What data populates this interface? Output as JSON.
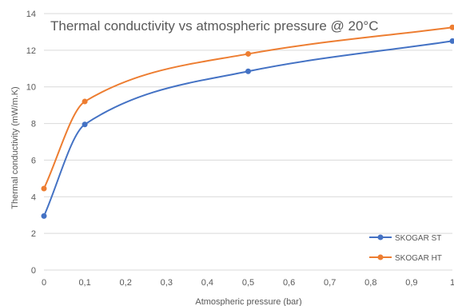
{
  "chart_data": {
    "type": "line",
    "title": "Thermal conductivity vs atmospheric pressure @ 20°C",
    "xlabel": "Atmospheric pressure (bar)",
    "ylabel": "Thermal conductivity (mW/m.K)",
    "xlim": [
      0,
      1
    ],
    "ylim": [
      0,
      14
    ],
    "x_ticks": [
      "0",
      "0,1",
      "0,2",
      "0,3",
      "0,4",
      "0,5",
      "0,6",
      "0,7",
      "0,8",
      "0,9",
      "1"
    ],
    "y_ticks": [
      "0",
      "2",
      "4",
      "6",
      "8",
      "10",
      "12",
      "14"
    ],
    "grid": "horizontal",
    "legend_position": "bottom-right",
    "series": [
      {
        "name": "SKOGAR ST",
        "color": "#4472c4",
        "x": [
          0,
          0.1,
          0.5,
          1
        ],
        "y": [
          2.95,
          7.95,
          10.85,
          12.5
        ]
      },
      {
        "name": "SKOGAR HT",
        "color": "#ed7d31",
        "x": [
          0,
          0.1,
          0.5,
          1
        ],
        "y": [
          4.45,
          9.2,
          11.8,
          13.25
        ]
      }
    ]
  }
}
